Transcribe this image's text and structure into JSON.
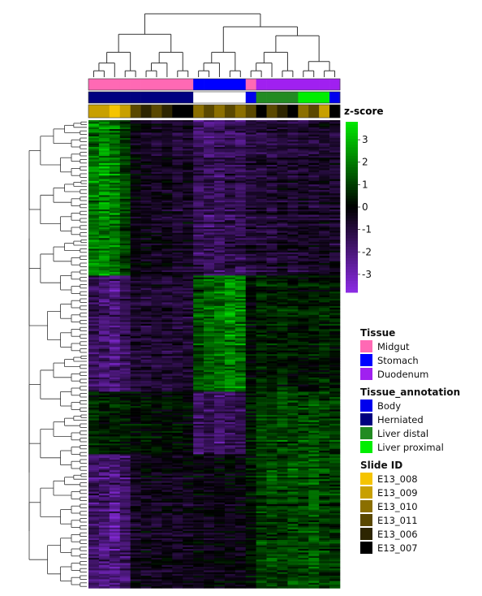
{
  "chart_data": {
    "type": "heatmap",
    "title": "",
    "colorbar": {
      "label": "z-score",
      "ticks": [
        3,
        2,
        1,
        0,
        -1,
        -2,
        -3
      ],
      "range": [
        -3.8,
        3.8
      ],
      "colors": [
        "#8a2be2",
        "#000000",
        "#00e600"
      ]
    },
    "columns": 24,
    "rows_approx": 300,
    "annotation_rows": [
      "Tissue",
      "Tissue_annotation",
      "Slide ID"
    ],
    "column_tissue": [
      "Midgut",
      "Midgut",
      "Midgut",
      "Midgut",
      "Midgut",
      "Midgut",
      "Midgut",
      "Midgut",
      "Midgut",
      "Midgut",
      "Stomach",
      "Stomach",
      "Stomach",
      "Stomach",
      "Stomach",
      "Midgut",
      "Duodenum",
      "Duodenum",
      "Duodenum",
      "Duodenum",
      "Duodenum",
      "Duodenum",
      "Duodenum",
      "Duodenum"
    ],
    "column_tissue_annotation": [
      "Herniated",
      "Herniated",
      "Herniated",
      "Herniated",
      "Herniated",
      "Herniated",
      "Herniated",
      "Herniated",
      "Herniated",
      "Herniated",
      "",
      "",
      "",
      "",
      "",
      "Body",
      "Liver distal",
      "Liver distal",
      "Liver distal",
      "Liver distal",
      "Liver proximal",
      "Liver proximal",
      "Liver proximal",
      "Body"
    ],
    "column_slide": [
      "E13_009",
      "E13_009",
      "E13_008",
      "E13_009",
      "E13_011",
      "E13_006",
      "E13_011",
      "E13_006",
      "E13_007",
      "E13_007",
      "E13_010",
      "E13_011",
      "E13_010",
      "E13_011",
      "E13_010",
      "E13_011",
      "E13_007",
      "E13_011",
      "E13_006",
      "E13_007",
      "E13_010",
      "E13_011",
      "E13_009",
      "E13_007"
    ],
    "row_blocks": [
      {
        "name": "block-1",
        "fraction": 0.33,
        "pattern": [
          2.2,
          2.4,
          2.0,
          1.0,
          -0.2,
          -0.5,
          -0.6,
          -0.5,
          -0.8,
          -0.6,
          -1.6,
          -1.8,
          -1.7,
          -1.5,
          -1.6,
          -1.0,
          -0.9,
          -1.0,
          -0.8,
          -0.9,
          -0.7,
          -0.8,
          -0.6,
          -0.8
        ]
      },
      {
        "name": "block-2",
        "fraction": 0.25,
        "pattern": [
          -1.6,
          -1.9,
          -2.2,
          -1.5,
          -0.8,
          -0.9,
          -0.8,
          -0.9,
          -0.9,
          -0.8,
          1.4,
          1.8,
          2.1,
          2.3,
          2.0,
          0.2,
          0.6,
          0.5,
          0.7,
          0.5,
          0.4,
          0.5,
          0.6,
          0.5
        ]
      },
      {
        "name": "block-3",
        "fraction": 0.13,
        "pattern": [
          0.7,
          0.6,
          0.6,
          0.5,
          0.3,
          0.3,
          0.2,
          0.2,
          0.3,
          0.2,
          -1.8,
          -1.5,
          -1.9,
          -1.6,
          -1.3,
          0.4,
          1.2,
          1.1,
          1.3,
          1.2,
          1.2,
          1.4,
          1.1,
          1.0
        ]
      },
      {
        "name": "block-4",
        "fraction": 0.29,
        "pattern": [
          -1.8,
          -2.0,
          -2.4,
          -1.8,
          -0.6,
          -0.4,
          -0.5,
          -0.4,
          -0.5,
          -0.4,
          -0.2,
          -0.3,
          -0.1,
          -0.2,
          -0.3,
          0.3,
          1.0,
          1.2,
          1.1,
          1.4,
          1.3,
          1.6,
          1.1,
          1.0
        ]
      }
    ]
  },
  "legends": [
    {
      "title": "Tissue",
      "items": [
        {
          "label": "Midgut",
          "color": "#ff69b4"
        },
        {
          "label": "Stomach",
          "color": "#0000ff"
        },
        {
          "label": "Duodenum",
          "color": "#a020f0"
        }
      ]
    },
    {
      "title": "Tissue_annotation",
      "items": [
        {
          "label": "Body",
          "color": "#0000ee"
        },
        {
          "label": "Herniated",
          "color": "#000080"
        },
        {
          "label": "Liver distal",
          "color": "#228b22"
        },
        {
          "label": "Liver proximal",
          "color": "#00ee00"
        }
      ]
    },
    {
      "title": "Slide ID",
      "items": [
        {
          "label": "E13_008",
          "color": "#f5c400"
        },
        {
          "label": "E13_009",
          "color": "#c8a000"
        },
        {
          "label": "E13_010",
          "color": "#8b6f00"
        },
        {
          "label": "E13_011",
          "color": "#5a4800"
        },
        {
          "label": "E13_006",
          "color": "#2d2500"
        },
        {
          "label": "E13_007",
          "color": "#000000"
        }
      ]
    }
  ]
}
